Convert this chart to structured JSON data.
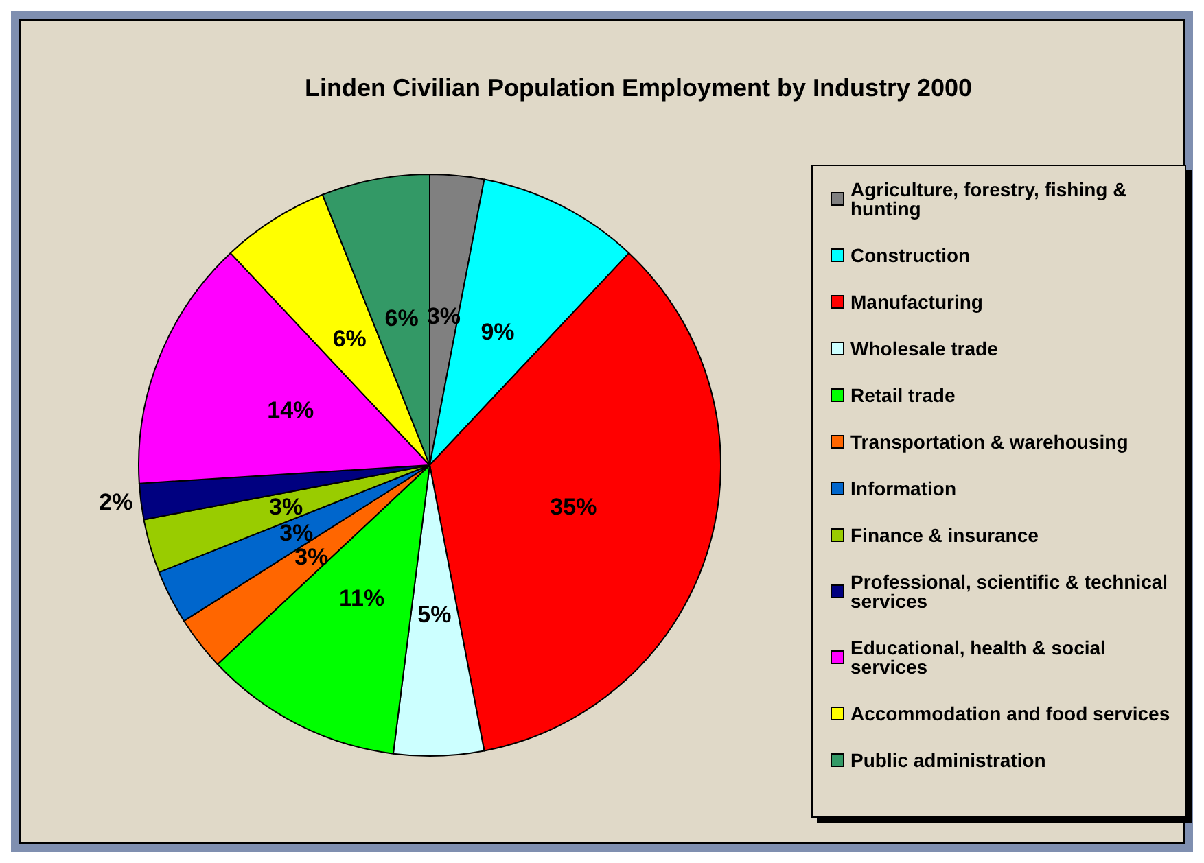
{
  "chart_data": {
    "type": "pie",
    "title": "Linden Civilian Population Employment by Industry 2000",
    "categories": [
      "Agriculture, forestry, fishing & hunting",
      "Construction",
      "Manufacturing",
      "Wholesale trade",
      "Retail trade",
      "Transportation & warehousing",
      "Information",
      "Finance & insurance",
      "Professional, scientific & technical services",
      "Educational, health & social services",
      "Accommodation and food services",
      "Public administration"
    ],
    "values": [
      3,
      9,
      35,
      5,
      11,
      3,
      3,
      3,
      2,
      14,
      6,
      6
    ],
    "value_labels": [
      "3%",
      "9%",
      "35%",
      "5%",
      "11%",
      "3%",
      "3%",
      "3%",
      "2%",
      "14%",
      "6%",
      "6%"
    ],
    "colors": [
      "#808080",
      "#00ffff",
      "#ff0000",
      "#ccffff",
      "#00ff00",
      "#ff6600",
      "#0066cc",
      "#99cc00",
      "#000080",
      "#ff00ff",
      "#ffff00",
      "#339966"
    ],
    "legend": "right"
  }
}
